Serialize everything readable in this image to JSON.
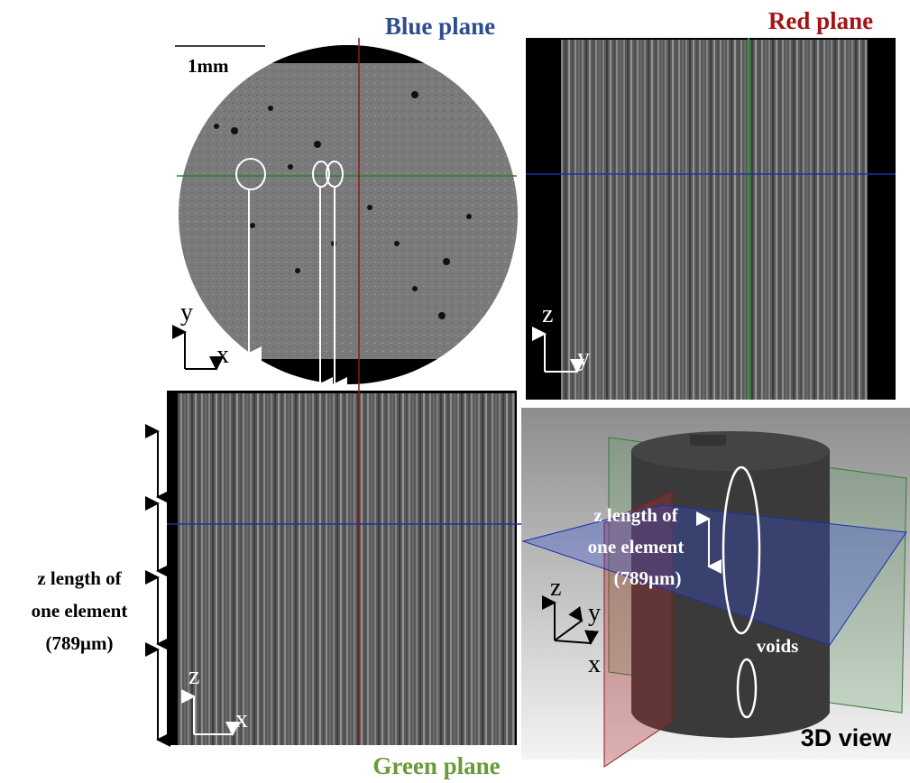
{
  "blue_panel": {
    "title": "Blue plane",
    "scale_bar": "1mm",
    "axis_up": "y",
    "axis_right": "x"
  },
  "red_panel": {
    "title": "Red plane",
    "axis_up": "z",
    "axis_right": "y"
  },
  "green_panel": {
    "title": "Green plane",
    "axis_up": "z",
    "axis_right": "x",
    "annotation": [
      "z length of",
      "one element",
      "(789μm)"
    ]
  },
  "view_3d": {
    "title": "3D view",
    "annotation": [
      "z length of",
      "one element",
      "(789μm)"
    ],
    "axis_up": "z",
    "axis_depth": "y",
    "axis_right": "x",
    "voids_label": "voids"
  }
}
